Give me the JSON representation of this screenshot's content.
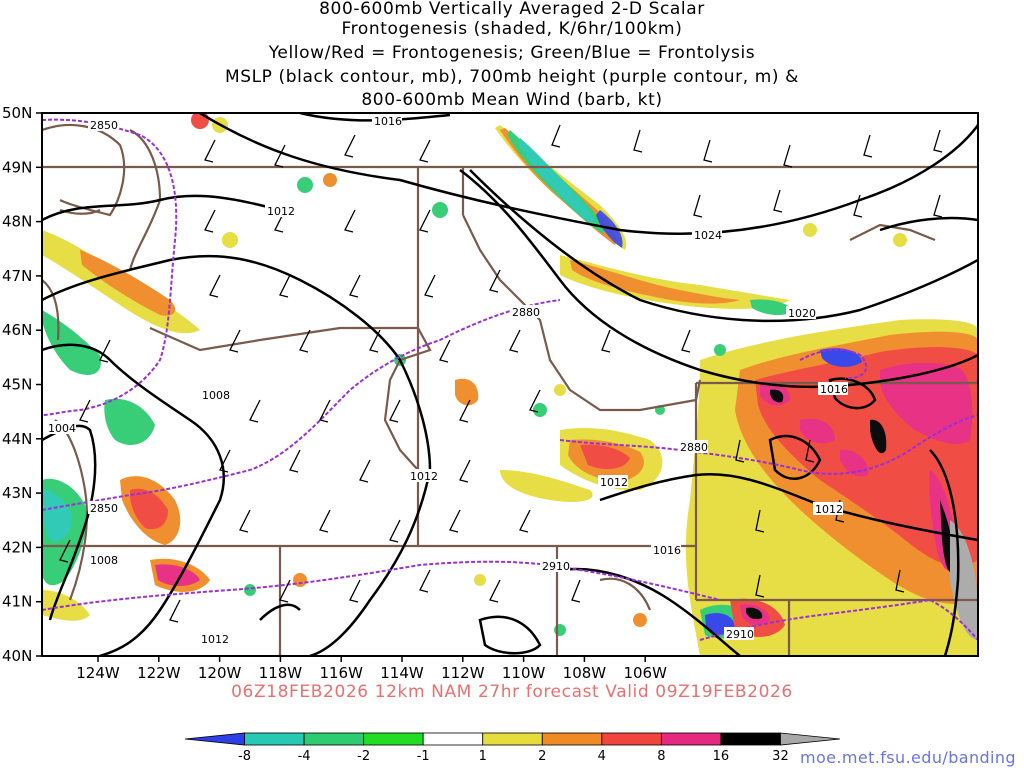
{
  "title": {
    "line1": "800-600mb Vertically Averaged 2-D Scalar",
    "line2": "Frontogenesis (shaded, K/6hr/100km)",
    "line3": "Yellow/Red = Frontogenesis;  Green/Blue = Frontolysis",
    "line4": "MSLP (black contour, mb), 700mb height (purple contour, m) &",
    "line5": "800-600mb Mean Wind (barb, kt)"
  },
  "axes": {
    "lat_labels": [
      "50N",
      "49N",
      "48N",
      "47N",
      "46N",
      "45N",
      "44N",
      "43N",
      "42N",
      "41N",
      "40N"
    ],
    "lon_labels": [
      "124W",
      "122W",
      "120W",
      "118W",
      "116W",
      "114W",
      "112W",
      "110W",
      "108W",
      "106W"
    ]
  },
  "contour_labels": {
    "mslp": [
      "1016",
      "1012",
      "1024",
      "1020",
      "1008",
      "1004",
      "1012",
      "1016",
      "1012",
      "1012",
      "1008",
      "1012",
      "1016"
    ],
    "height": [
      "2850",
      "2880",
      "2850",
      "2880",
      "2910",
      "2910"
    ]
  },
  "forecast_line": "06Z18FEB2026  12km NAM  27hr forecast  Valid 09Z19FEB2026",
  "colorbar": {
    "labels": [
      "-8",
      "-4",
      "-2",
      "-1",
      "1",
      "2",
      "4",
      "8",
      "16",
      "32"
    ],
    "colors": [
      "#2f3fe8",
      "#27c8b4",
      "#2ecc71",
      "#22dd22",
      "#ffffff",
      "#e6dc3c",
      "#f08a24",
      "#f0443c",
      "#e6287f",
      "#000000",
      "#a8a8a8"
    ]
  },
  "source_url": "moe.met.fsu.edu/banding",
  "colors": {
    "state_border": "#7a5a4a",
    "mslp_contour": "#000000",
    "height_contour": "#9b30d6",
    "forecast_text": "#e87070",
    "url_text": "#6b75e0"
  }
}
